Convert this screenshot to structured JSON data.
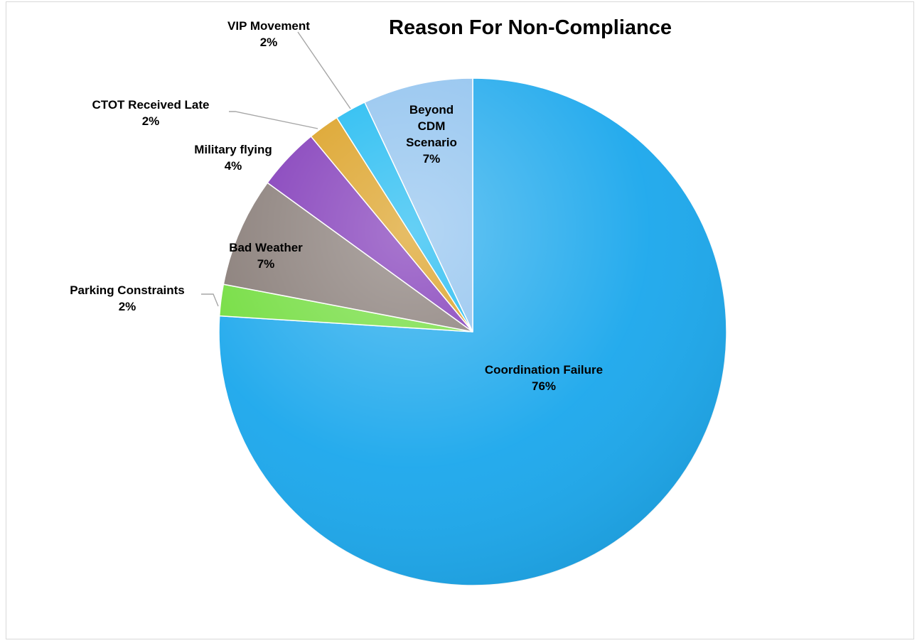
{
  "chart_data": {
    "type": "pie",
    "title": "Reason For Non-Compliance",
    "start_angle_deg": 0,
    "direction": "clockwise",
    "slices": [
      {
        "label": "Coordination Failure",
        "value": 76,
        "display": "76%",
        "color": "#1aa7ec"
      },
      {
        "label": "Parking Constraints",
        "value": 2,
        "display": "2%",
        "color": "#6fdc3a"
      },
      {
        "label": "Bad Weather",
        "value": 7,
        "display": "7%",
        "color": "#847873"
      },
      {
        "label": "Military flying",
        "value": 4,
        "display": "4%",
        "color": "#7a2fb5"
      },
      {
        "label": "CTOT Received Late",
        "value": 2,
        "display": "2%",
        "color": "#d99a14"
      },
      {
        "label": "VIP Movement",
        "value": 2,
        "display": "2%",
        "color": "#12b6f0"
      },
      {
        "label": "Beyond CDM Scenario",
        "value": 7,
        "display": "7%",
        "color": "#8cc0ee"
      }
    ]
  }
}
